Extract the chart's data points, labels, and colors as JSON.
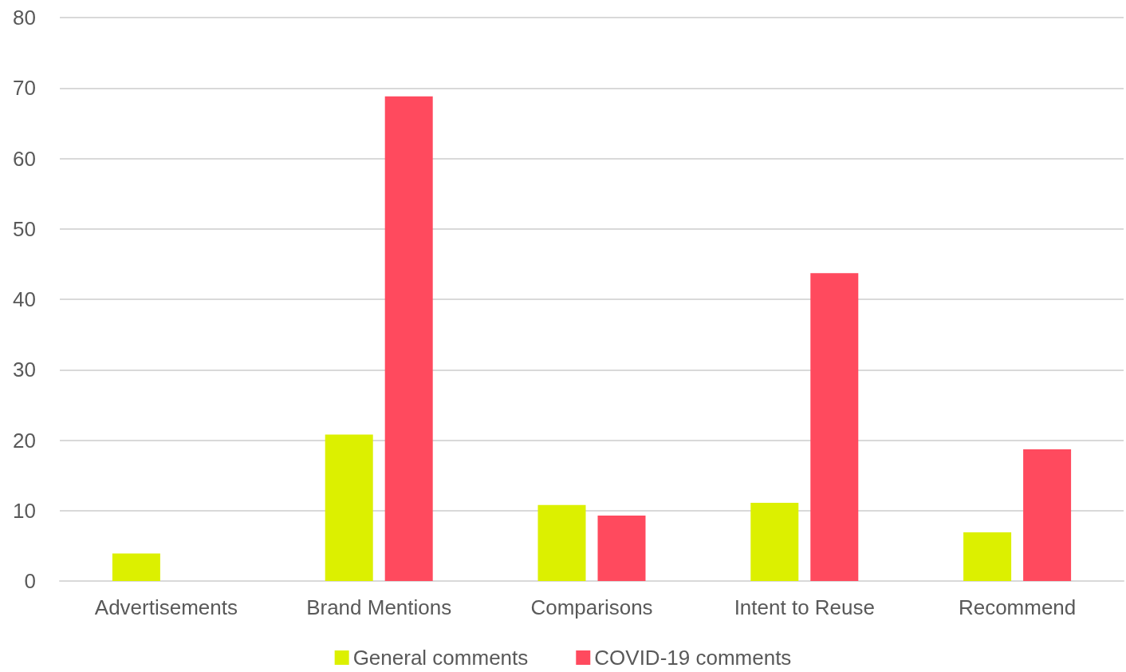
{
  "chart_data": {
    "type": "bar",
    "categories": [
      "Advertisements",
      "Brand Mentions",
      "Comparisons",
      "Intent to Reuse",
      "Recommend"
    ],
    "series": [
      {
        "name": "General comments",
        "color": "#dcf000",
        "values": [
          3.9,
          20.8,
          10.8,
          11.1,
          6.9
        ]
      },
      {
        "name": "COVID-19 comments",
        "color": "#ff4a5e",
        "values": [
          0,
          68.8,
          9.3,
          43.7,
          18.7
        ]
      }
    ],
    "ylim": [
      0,
      80
    ],
    "yticks": [
      0,
      10,
      20,
      30,
      40,
      50,
      60,
      70,
      80
    ],
    "grid": "y",
    "legend": "bottom"
  }
}
